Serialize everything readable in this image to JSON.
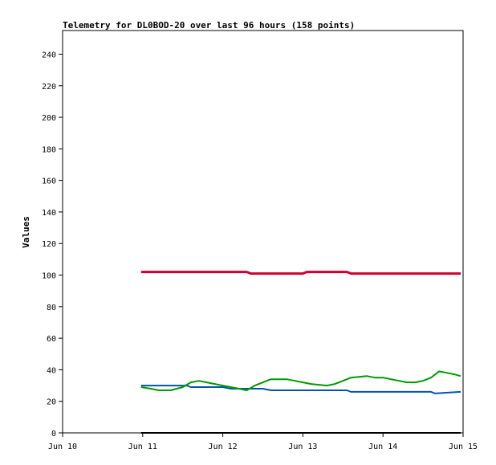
{
  "chart_data": {
    "type": "line",
    "title": "Telemetry for DL0BOD-20 over last 96 hours (158 points)",
    "xlabel": "",
    "ylabel": "Values",
    "xlim": [
      10,
      15
    ],
    "ylim": [
      0,
      255
    ],
    "x_ticks": [
      {
        "value": 10,
        "label": "Jun 10"
      },
      {
        "value": 11,
        "label": "Jun 11"
      },
      {
        "value": 12,
        "label": "Jun 12"
      },
      {
        "value": 13,
        "label": "Jun 13"
      },
      {
        "value": 14,
        "label": "Jun 14"
      },
      {
        "value": 15,
        "label": "Jun 15"
      }
    ],
    "y_ticks": [
      0,
      20,
      40,
      60,
      80,
      100,
      120,
      140,
      160,
      180,
      200,
      220,
      240
    ],
    "grid": false,
    "series": [
      {
        "color": "#cc0033",
        "x": [
          10.98,
          11.5,
          12.0,
          12.3,
          12.35,
          12.4,
          12.7,
          13.0,
          13.05,
          13.3,
          13.55,
          13.6,
          14.0,
          14.5,
          14.97
        ],
        "y": [
          102,
          102,
          102,
          102,
          101,
          101,
          101,
          101,
          102,
          102,
          102,
          101,
          101,
          101,
          101
        ]
      },
      {
        "color": "#0055aa",
        "x": [
          10.98,
          11.2,
          11.55,
          11.6,
          12.0,
          12.1,
          12.5,
          12.6,
          13.0,
          13.2,
          13.55,
          13.6,
          14.0,
          14.3,
          14.6,
          14.65,
          14.97
        ],
        "y": [
          30,
          30,
          30,
          29,
          29,
          28,
          28,
          27,
          27,
          27,
          27,
          26,
          26,
          26,
          26,
          25,
          26
        ]
      },
      {
        "color": "#009900",
        "x": [
          10.98,
          11.1,
          11.2,
          11.35,
          11.5,
          11.6,
          11.7,
          11.8,
          11.9,
          12.0,
          12.1,
          12.2,
          12.3,
          12.4,
          12.5,
          12.6,
          12.8,
          12.9,
          13.0,
          13.1,
          13.3,
          13.4,
          13.5,
          13.6,
          13.8,
          13.9,
          14.0,
          14.1,
          14.2,
          14.3,
          14.4,
          14.5,
          14.6,
          14.65,
          14.7,
          14.8,
          14.9,
          14.97
        ],
        "y": [
          29,
          28,
          27,
          27,
          29,
          32,
          33,
          32,
          31,
          30,
          29,
          28,
          27,
          30,
          32,
          34,
          34,
          33,
          32,
          31,
          30,
          31,
          33,
          35,
          36,
          35,
          35,
          34,
          33,
          32,
          32,
          33,
          35,
          37,
          39,
          38,
          37,
          36
        ]
      },
      {
        "color": "#000000",
        "x": [
          10.98,
          14.97
        ],
        "y": [
          0,
          0
        ]
      }
    ]
  }
}
